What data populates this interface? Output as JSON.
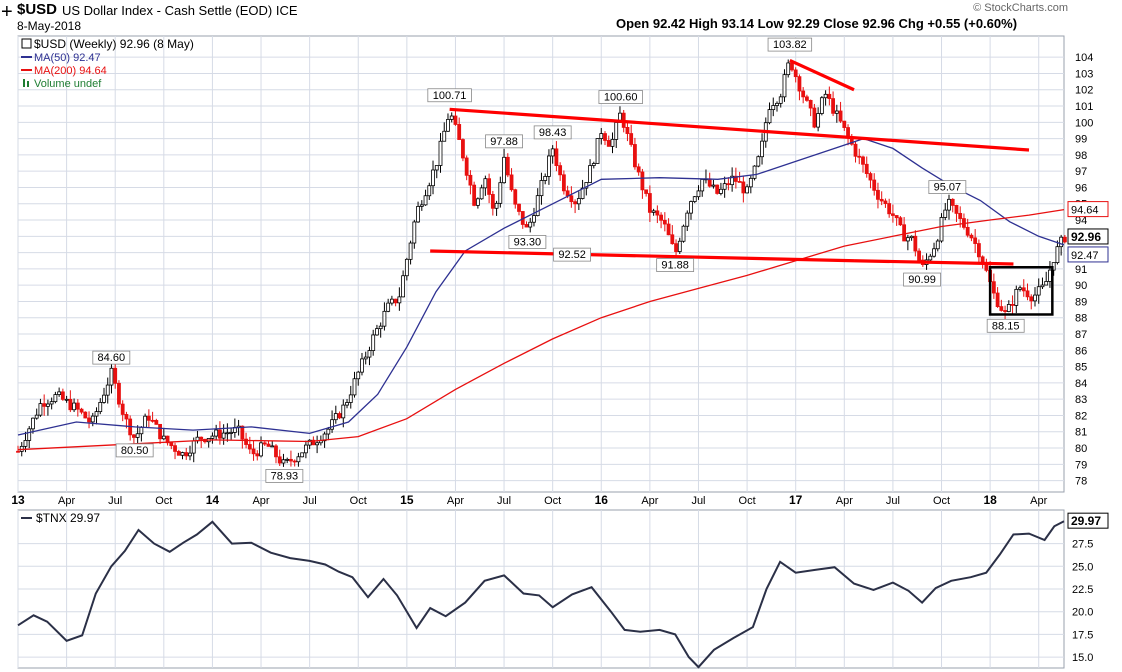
{
  "header": {
    "symbol": "$USD",
    "description": "US Dollar Index - Cash Settle (EOD)",
    "exchange": "ICE",
    "date": "8-May-2018",
    "quote": "Open 92.42  High 93.14  Low 92.29  Close 92.96  Chg +0.55 (+0.60%)",
    "copyright": "© StockCharts.com",
    "crosshair": "+"
  },
  "colors": {
    "price_up": "#000000",
    "price_down": "#e81010",
    "ma50": "#2e3192",
    "ma200": "#e81010",
    "volume": "#1e7d32",
    "trend": "#ff0000",
    "tnx_line": "#2b3047",
    "grid": "#d6dbe6"
  },
  "chart_data": [
    {
      "type": "candlestick",
      "panel": "price",
      "title": "$USD (Weekly) 92.96 (8 May)",
      "legend": [
        "$USD (Weekly) 92.96 (8 May)",
        "MA(50) 92.47",
        "MA(200) 94.64",
        "Volume undef"
      ],
      "legend_position": "top-left",
      "x_tick_labels": [
        "13",
        "Apr",
        "Jul",
        "Oct",
        "14",
        "Apr",
        "Jul",
        "Oct",
        "15",
        "Apr",
        "Jul",
        "Oct",
        "16",
        "Apr",
        "Jul",
        "Oct",
        "17",
        "Apr",
        "Jul",
        "Oct",
        "18",
        "Apr"
      ],
      "x_range": [
        2013.0,
        2018.38
      ],
      "y_ticks": [
        78,
        79,
        80,
        81,
        82,
        83,
        84,
        85,
        86,
        87,
        88,
        89,
        90,
        91,
        92,
        93,
        94,
        95,
        96,
        97,
        98,
        99,
        100,
        101,
        102,
        103,
        104
      ],
      "y_range": [
        77.3,
        105.3
      ],
      "grid": true,
      "price_path": [
        [
          2013.0,
          79.8
        ],
        [
          2013.12,
          82.8
        ],
        [
          2013.2,
          83.2
        ],
        [
          2013.3,
          82.4
        ],
        [
          2013.38,
          81.5
        ],
        [
          2013.48,
          84.6
        ],
        [
          2013.55,
          81.8
        ],
        [
          2013.6,
          80.6
        ],
        [
          2013.67,
          82.0
        ],
        [
          2013.75,
          80.5
        ],
        [
          2013.85,
          79.6
        ],
        [
          2013.93,
          80.6
        ],
        [
          2014.05,
          80.9
        ],
        [
          2014.13,
          81.1
        ],
        [
          2014.2,
          79.6
        ],
        [
          2014.28,
          80.2
        ],
        [
          2014.37,
          78.93
        ],
        [
          2014.5,
          80.2
        ],
        [
          2014.6,
          81.2
        ],
        [
          2014.68,
          82.6
        ],
        [
          2014.75,
          84.6
        ],
        [
          2014.82,
          86.6
        ],
        [
          2014.9,
          88.6
        ],
        [
          2014.96,
          89.3
        ],
        [
          2015.05,
          94.5
        ],
        [
          2015.15,
          97.4
        ],
        [
          2015.22,
          100.71
        ],
        [
          2015.28,
          98.4
        ],
        [
          2015.35,
          95.0
        ],
        [
          2015.4,
          96.8
        ],
        [
          2015.45,
          94.2
        ],
        [
          2015.5,
          97.88
        ],
        [
          2015.55,
          95.0
        ],
        [
          2015.62,
          93.3
        ],
        [
          2015.7,
          96.4
        ],
        [
          2015.75,
          98.43
        ],
        [
          2015.8,
          96.2
        ],
        [
          2015.87,
          95.1
        ],
        [
          2015.95,
          97.3
        ],
        [
          2016.0,
          99.5
        ],
        [
          2016.05,
          98.6
        ],
        [
          2016.1,
          100.6
        ],
        [
          2016.18,
          97.2
        ],
        [
          2016.25,
          94.6
        ],
        [
          2016.32,
          93.8
        ],
        [
          2016.38,
          91.88
        ],
        [
          2016.45,
          95.0
        ],
        [
          2016.52,
          96.5
        ],
        [
          2016.6,
          95.6
        ],
        [
          2016.68,
          96.6
        ],
        [
          2016.75,
          95.7
        ],
        [
          2016.82,
          98.1
        ],
        [
          2016.86,
          101.0
        ],
        [
          2016.92,
          101.7
        ],
        [
          2016.97,
          103.82
        ],
        [
          2017.05,
          101.3
        ],
        [
          2017.1,
          99.9
        ],
        [
          2017.15,
          101.8
        ],
        [
          2017.22,
          100.2
        ],
        [
          2017.28,
          98.8
        ],
        [
          2017.35,
          97.2
        ],
        [
          2017.42,
          95.6
        ],
        [
          2017.5,
          94.3
        ],
        [
          2017.55,
          93.1
        ],
        [
          2017.6,
          92.8
        ],
        [
          2017.65,
          90.99
        ],
        [
          2017.72,
          92.6
        ],
        [
          2017.78,
          95.07
        ],
        [
          2017.85,
          93.9
        ],
        [
          2017.9,
          93.1
        ],
        [
          2017.95,
          91.9
        ],
        [
          2018.02,
          89.4
        ],
        [
          2018.08,
          88.15
        ],
        [
          2018.15,
          89.9
        ],
        [
          2018.22,
          89.3
        ],
        [
          2018.28,
          89.9
        ],
        [
          2018.33,
          91.8
        ],
        [
          2018.38,
          92.96
        ]
      ],
      "ma50": [
        [
          2013.0,
          80.8
        ],
        [
          2013.3,
          81.6
        ],
        [
          2013.6,
          81.3
        ],
        [
          2013.9,
          81.1
        ],
        [
          2014.2,
          81.3
        ],
        [
          2014.5,
          80.9
        ],
        [
          2014.7,
          81.6
        ],
        [
          2014.85,
          83.3
        ],
        [
          2015.0,
          86.2
        ],
        [
          2015.15,
          89.6
        ],
        [
          2015.3,
          92.1
        ],
        [
          2015.5,
          93.5
        ],
        [
          2015.8,
          95.3
        ],
        [
          2016.0,
          96.5
        ],
        [
          2016.3,
          96.6
        ],
        [
          2016.6,
          96.5
        ],
        [
          2016.8,
          96.8
        ],
        [
          2017.0,
          97.6
        ],
        [
          2017.2,
          98.4
        ],
        [
          2017.35,
          99.0
        ],
        [
          2017.5,
          98.4
        ],
        [
          2017.65,
          97.2
        ],
        [
          2017.8,
          96.1
        ],
        [
          2017.95,
          95.2
        ],
        [
          2018.1,
          93.9
        ],
        [
          2018.25,
          93.0
        ],
        [
          2018.38,
          92.47
        ]
      ],
      "ma200": [
        [
          2013.0,
          79.9
        ],
        [
          2013.5,
          80.2
        ],
        [
          2014.0,
          80.5
        ],
        [
          2014.5,
          80.4
        ],
        [
          2014.75,
          80.7
        ],
        [
          2015.0,
          81.8
        ],
        [
          2015.25,
          83.6
        ],
        [
          2015.5,
          85.2
        ],
        [
          2015.75,
          86.7
        ],
        [
          2016.0,
          88.0
        ],
        [
          2016.25,
          89.0
        ],
        [
          2016.5,
          89.8
        ],
        [
          2016.75,
          90.6
        ],
        [
          2017.0,
          91.5
        ],
        [
          2017.25,
          92.4
        ],
        [
          2017.5,
          93.0
        ],
        [
          2017.75,
          93.6
        ],
        [
          2018.0,
          94.0
        ],
        [
          2018.2,
          94.3
        ],
        [
          2018.38,
          94.64
        ]
      ],
      "trendlines": [
        {
          "from": [
            2015.22,
            100.8
          ],
          "to": [
            2018.2,
            98.3
          ]
        },
        {
          "from": [
            2015.12,
            92.1
          ],
          "to": [
            2017.3,
            91.5
          ]
        },
        {
          "from": [
            2016.97,
            103.8
          ],
          "to": [
            2017.3,
            102.0
          ]
        },
        {
          "from": [
            2017.3,
            91.5
          ],
          "to": [
            2018.12,
            91.3
          ]
        }
      ],
      "box": {
        "x_from": 2018.0,
        "x_to": 2018.32,
        "y_from": 88.2,
        "y_to": 91.1
      },
      "annotations": [
        {
          "text": "84.60",
          "x": 2013.48,
          "y": 84.6,
          "pos": "above"
        },
        {
          "text": "80.50",
          "x": 2013.6,
          "y": 80.5,
          "pos": "below"
        },
        {
          "text": "78.93",
          "x": 2014.37,
          "y": 78.93,
          "pos": "below"
        },
        {
          "text": "100.71",
          "x": 2015.22,
          "y": 100.71,
          "pos": "above"
        },
        {
          "text": "97.88",
          "x": 2015.5,
          "y": 97.88,
          "pos": "above"
        },
        {
          "text": "93.30",
          "x": 2015.62,
          "y": 93.3,
          "pos": "below"
        },
        {
          "text": "98.43",
          "x": 2015.75,
          "y": 98.43,
          "pos": "above"
        },
        {
          "text": "92.52",
          "x": 2015.85,
          "y": 92.52,
          "pos": "below"
        },
        {
          "text": "100.60",
          "x": 2016.1,
          "y": 100.6,
          "pos": "above"
        },
        {
          "text": "91.88",
          "x": 2016.38,
          "y": 91.88,
          "pos": "below"
        },
        {
          "text": "103.82",
          "x": 2016.97,
          "y": 103.82,
          "pos": "above"
        },
        {
          "text": "90.99",
          "x": 2017.65,
          "y": 90.99,
          "pos": "below"
        },
        {
          "text": "95.07",
          "x": 2017.78,
          "y": 95.07,
          "pos": "above"
        },
        {
          "text": "88.15",
          "x": 2018.08,
          "y": 88.15,
          "pos": "below"
        }
      ],
      "last_value_labels": [
        {
          "text": "94.64",
          "y": 94.64,
          "style": "ma200"
        },
        {
          "text": "92.96",
          "y": 92.96,
          "style": "close"
        },
        {
          "text": "92.47",
          "y": 92.47,
          "style": "ma50"
        }
      ]
    },
    {
      "type": "line",
      "panel": "indicator",
      "title": "$TNX 29.97",
      "series": [
        {
          "name": "$TNX 29.97",
          "values": [
            [
              2013.0,
              18.5
            ],
            [
              2013.08,
              19.6
            ],
            [
              2013.15,
              18.9
            ],
            [
              2013.25,
              16.8
            ],
            [
              2013.33,
              17.4
            ],
            [
              2013.4,
              22.0
            ],
            [
              2013.48,
              25.0
            ],
            [
              2013.55,
              26.7
            ],
            [
              2013.62,
              29.0
            ],
            [
              2013.7,
              27.5
            ],
            [
              2013.78,
              26.6
            ],
            [
              2013.85,
              27.6
            ],
            [
              2013.92,
              28.5
            ],
            [
              2014.0,
              29.9
            ],
            [
              2014.1,
              27.5
            ],
            [
              2014.2,
              27.6
            ],
            [
              2014.3,
              26.5
            ],
            [
              2014.4,
              25.9
            ],
            [
              2014.5,
              25.6
            ],
            [
              2014.58,
              25.2
            ],
            [
              2014.65,
              24.4
            ],
            [
              2014.72,
              23.8
            ],
            [
              2014.8,
              21.6
            ],
            [
              2014.88,
              23.6
            ],
            [
              2014.95,
              21.8
            ],
            [
              2015.05,
              18.2
            ],
            [
              2015.12,
              20.4
            ],
            [
              2015.2,
              19.5
            ],
            [
              2015.3,
              21.0
            ],
            [
              2015.4,
              23.4
            ],
            [
              2015.5,
              24.0
            ],
            [
              2015.6,
              22.0
            ],
            [
              2015.68,
              21.8
            ],
            [
              2015.75,
              20.5
            ],
            [
              2015.85,
              21.9
            ],
            [
              2015.95,
              22.7
            ],
            [
              2016.05,
              20.0
            ],
            [
              2016.12,
              18.0
            ],
            [
              2016.2,
              17.8
            ],
            [
              2016.3,
              18.0
            ],
            [
              2016.38,
              17.5
            ],
            [
              2016.45,
              15.0
            ],
            [
              2016.5,
              13.9
            ],
            [
              2016.58,
              15.8
            ],
            [
              2016.68,
              17.1
            ],
            [
              2016.78,
              18.3
            ],
            [
              2016.85,
              22.5
            ],
            [
              2016.92,
              25.5
            ],
            [
              2017.0,
              24.3
            ],
            [
              2017.1,
              24.6
            ],
            [
              2017.2,
              24.9
            ],
            [
              2017.3,
              23.1
            ],
            [
              2017.4,
              22.4
            ],
            [
              2017.5,
              23.2
            ],
            [
              2017.58,
              22.3
            ],
            [
              2017.65,
              21.0
            ],
            [
              2017.72,
              22.6
            ],
            [
              2017.8,
              23.4
            ],
            [
              2017.9,
              23.8
            ],
            [
              2017.98,
              24.3
            ],
            [
              2018.05,
              26.3
            ],
            [
              2018.12,
              28.5
            ],
            [
              2018.2,
              28.6
            ],
            [
              2018.28,
              27.9
            ],
            [
              2018.33,
              29.4
            ],
            [
              2018.38,
              29.97
            ]
          ]
        }
      ],
      "x_range": [
        2013.0,
        2018.38
      ],
      "y_ticks": [
        15.0,
        17.5,
        20.0,
        22.5,
        25.0,
        27.5
      ],
      "y_range": [
        13.8,
        31.2
      ],
      "last_value_label": "29.97",
      "grid": true
    }
  ]
}
